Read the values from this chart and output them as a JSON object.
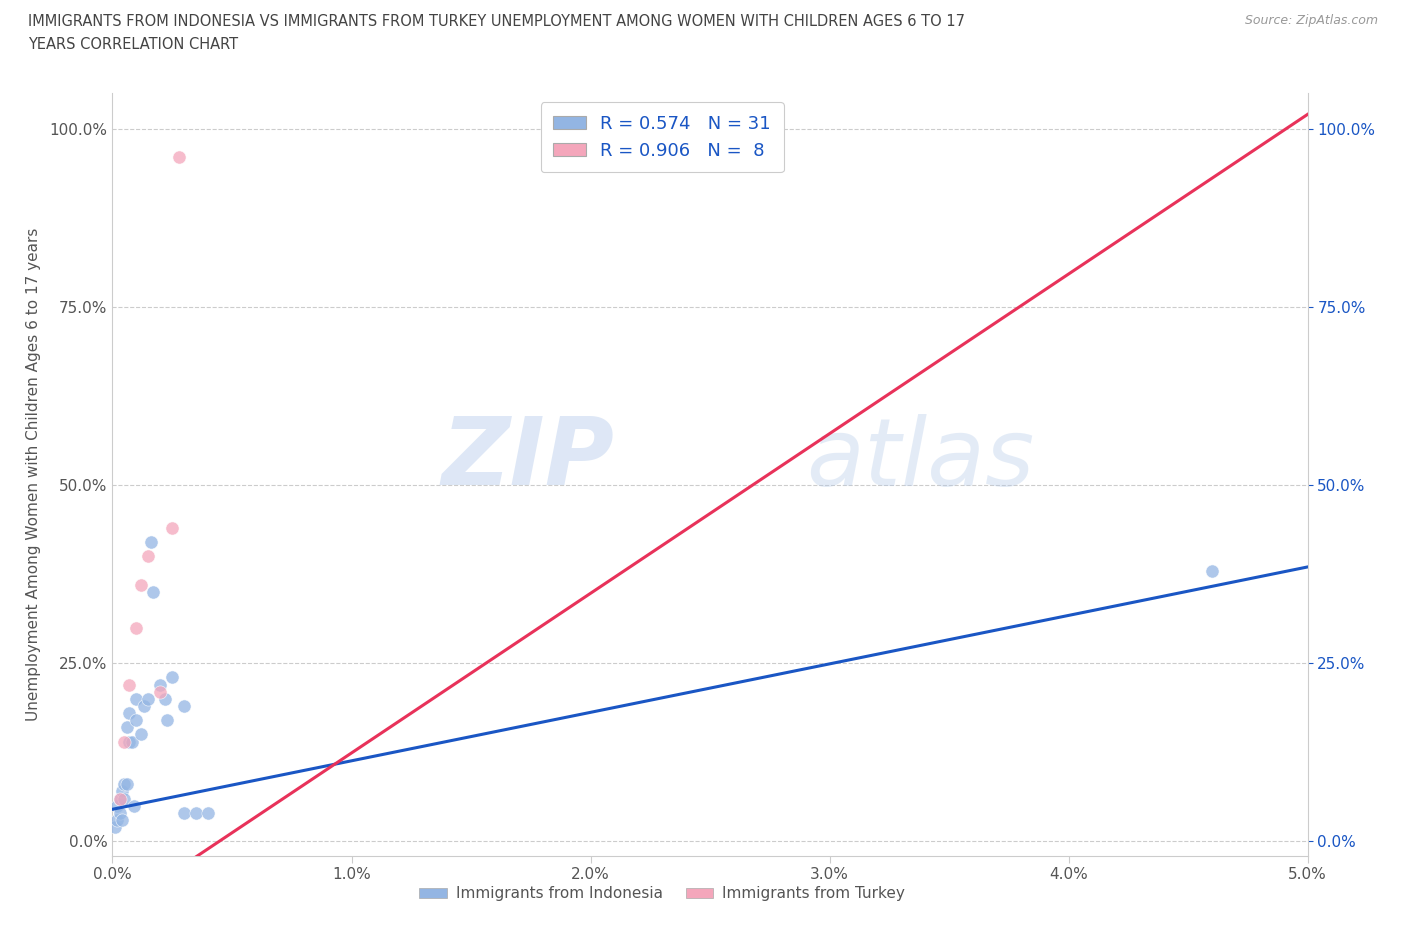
{
  "title_line1": "IMMIGRANTS FROM INDONESIA VS IMMIGRANTS FROM TURKEY UNEMPLOYMENT AMONG WOMEN WITH CHILDREN AGES 6 TO 17",
  "title_line2": "YEARS CORRELATION CHART",
  "source": "Source: ZipAtlas.com",
  "ylabel": "Unemployment Among Women with Children Ages 6 to 17 years",
  "xlim": [
    0.0,
    0.05
  ],
  "ylim": [
    -0.02,
    1.05
  ],
  "xticks": [
    0.0,
    0.01,
    0.02,
    0.03,
    0.04,
    0.05
  ],
  "xticklabels": [
    "0.0%",
    "1.0%",
    "2.0%",
    "3.0%",
    "4.0%",
    "5.0%"
  ],
  "yticks": [
    0.0,
    0.25,
    0.5,
    0.75,
    1.0
  ],
  "yticklabels": [
    "0.0%",
    "25.0%",
    "50.0%",
    "75.0%",
    "100.0%"
  ],
  "grid_color": "#cccccc",
  "bg_color": "#ffffff",
  "watermark_zip": "ZIP",
  "watermark_atlas": "atlas",
  "indonesia_color": "#93b5e3",
  "turkey_color": "#f4a6bb",
  "indonesia_line_color": "#1a56c4",
  "turkey_line_color": "#e8325a",
  "R_indonesia": 0.574,
  "N_indonesia": 31,
  "R_turkey": 0.906,
  "N_turkey": 8,
  "indo_x": [
    0.0001,
    0.0002,
    0.0002,
    0.0003,
    0.0003,
    0.0004,
    0.0004,
    0.0005,
    0.0005,
    0.0006,
    0.0006,
    0.0007,
    0.0007,
    0.0008,
    0.0009,
    0.001,
    0.001,
    0.0012,
    0.0013,
    0.0015,
    0.0016,
    0.0017,
    0.002,
    0.0022,
    0.0023,
    0.0025,
    0.003,
    0.003,
    0.0035,
    0.004,
    0.046
  ],
  "indo_y": [
    0.02,
    0.03,
    0.05,
    0.04,
    0.06,
    0.03,
    0.07,
    0.06,
    0.08,
    0.08,
    0.16,
    0.14,
    0.18,
    0.14,
    0.05,
    0.17,
    0.2,
    0.15,
    0.19,
    0.2,
    0.42,
    0.35,
    0.22,
    0.2,
    0.17,
    0.23,
    0.19,
    0.04,
    0.04,
    0.04,
    0.38
  ],
  "turk_x": [
    0.0003,
    0.0005,
    0.0007,
    0.001,
    0.0012,
    0.0015,
    0.002,
    0.0025
  ],
  "turk_y": [
    0.06,
    0.14,
    0.22,
    0.3,
    0.36,
    0.4,
    0.21,
    0.44
  ],
  "turk_outlier_x": [
    0.0028
  ],
  "turk_outlier_y": [
    0.96
  ],
  "indo_regression": [
    0.0,
    0.05,
    0.045,
    0.385
  ],
  "turk_regression": [
    0.0,
    0.048,
    -0.1,
    1.02
  ]
}
